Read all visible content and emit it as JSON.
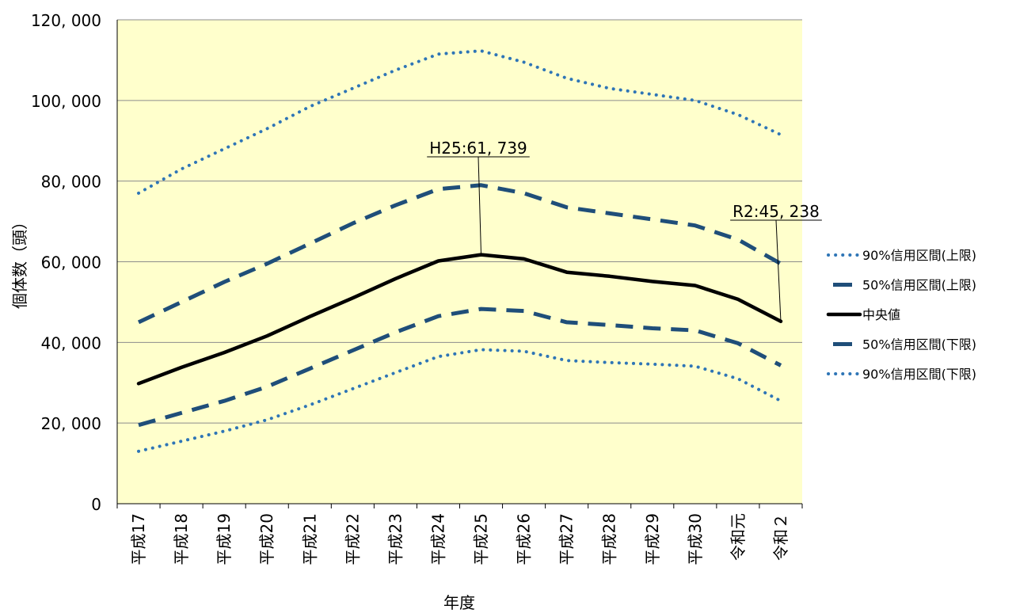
{
  "chart_data": {
    "type": "line",
    "xlabel": "年度",
    "ylabel": "個体数（頭）",
    "ylim": [
      0,
      120000
    ],
    "yticks": [
      0,
      20000,
      40000,
      60000,
      80000,
      100000,
      120000
    ],
    "ytick_labels": [
      "0",
      "20, 000",
      "40, 000",
      "60, 000",
      "80, 000",
      "100, 000",
      "120, 000"
    ],
    "categories": [
      "平成17",
      "平成18",
      "平成19",
      "平成20",
      "平成21",
      "平成22",
      "平成23",
      "平成24",
      "平成25",
      "平成26",
      "平成27",
      "平成28",
      "平成29",
      "平成30",
      "令和元",
      "令和２"
    ],
    "series": [
      {
        "name": "90%信用区間(上限)",
        "style": "dotted",
        "color": "#2e75b6",
        "values": [
          77000,
          83000,
          88000,
          93000,
          98500,
          103000,
          107500,
          111500,
          112300,
          109500,
          105500,
          103000,
          101500,
          100000,
          96500,
          91500
        ]
      },
      {
        "name": "50%信用区間(上限)",
        "style": "dashed",
        "color": "#1f4e79",
        "values": [
          45000,
          50000,
          55000,
          59500,
          64500,
          69500,
          74000,
          78000,
          79000,
          77000,
          73500,
          72000,
          70500,
          69000,
          65500,
          59500
        ]
      },
      {
        "name": "中央値",
        "style": "solid",
        "color": "#000000",
        "values": [
          29800,
          33800,
          37500,
          41600,
          46400,
          51000,
          55800,
          60200,
          61739,
          60700,
          57400,
          56400,
          55100,
          54100,
          50700,
          45238
        ]
      },
      {
        "name": "50%信用区間(下限)",
        "style": "dashed",
        "color": "#1f4e79",
        "values": [
          19500,
          22500,
          25500,
          29000,
          33500,
          38000,
          42500,
          46500,
          48300,
          47800,
          45000,
          44300,
          43500,
          43000,
          39800,
          34300
        ]
      },
      {
        "name": "90%信用区間(下限)",
        "style": "dotted",
        "color": "#2e75b6",
        "values": [
          13000,
          15500,
          18000,
          20800,
          24500,
          28500,
          32500,
          36500,
          38200,
          37800,
          35500,
          35000,
          34600,
          34100,
          31000,
          25500
        ]
      }
    ],
    "annotations": [
      {
        "text": "H25:61, 739",
        "category_index": 8,
        "value": 61739
      },
      {
        "text": "R2:45, 238",
        "category_index": 15,
        "value": 45238
      }
    ],
    "plot_background": "#ffffcc",
    "grid": true,
    "legend_position": "right"
  }
}
